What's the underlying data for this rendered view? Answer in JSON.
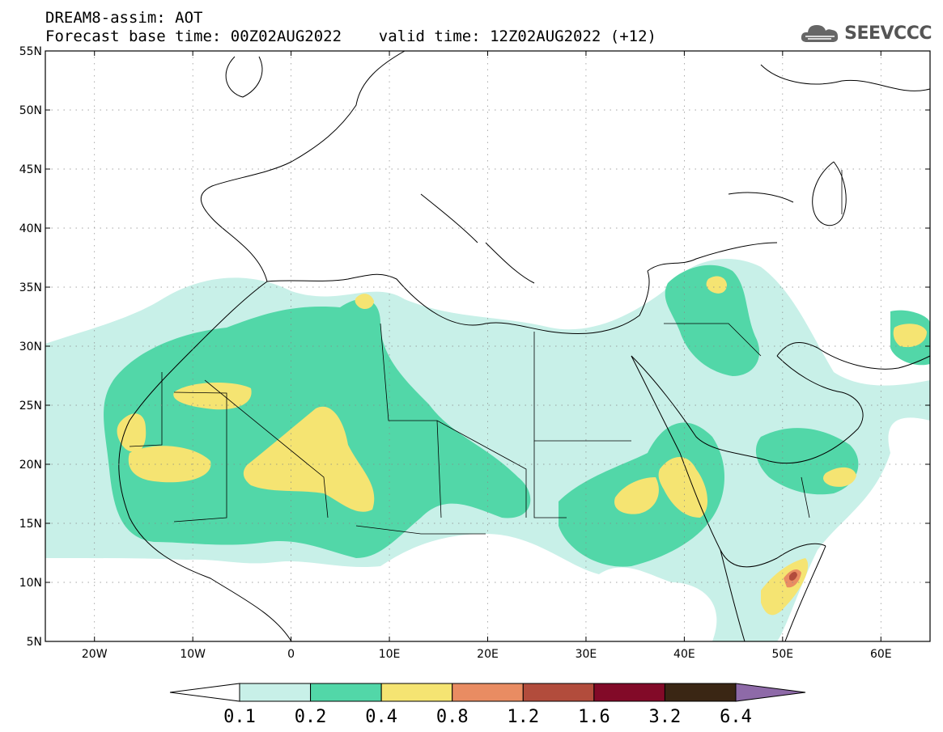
{
  "header": {
    "line1": "DREAM8-assim: AOT",
    "line2": "Forecast base time: 00Z02AUG2022    valid time: 12Z02AUG2022 (+12)"
  },
  "logo": {
    "text": "SEEVCCC",
    "icon": "cloud-logo-icon",
    "color": "#555555"
  },
  "map": {
    "lon_range": [
      -25,
      65
    ],
    "lat_range": [
      5,
      55
    ],
    "lon_ticks": [
      {
        "value": -20,
        "label": "20W"
      },
      {
        "value": -10,
        "label": "10W"
      },
      {
        "value": 0,
        "label": "0"
      },
      {
        "value": 10,
        "label": "10E"
      },
      {
        "value": 20,
        "label": "20E"
      },
      {
        "value": 30,
        "label": "30E"
      },
      {
        "value": 40,
        "label": "40E"
      },
      {
        "value": 50,
        "label": "50E"
      },
      {
        "value": 60,
        "label": "60E"
      }
    ],
    "lat_ticks": [
      {
        "value": 55,
        "label": "55N"
      },
      {
        "value": 50,
        "label": "50N"
      },
      {
        "value": 45,
        "label": "45N"
      },
      {
        "value": 40,
        "label": "40N"
      },
      {
        "value": 35,
        "label": "35N"
      },
      {
        "value": 30,
        "label": "30N"
      },
      {
        "value": 25,
        "label": "25N"
      },
      {
        "value": 20,
        "label": "20N"
      },
      {
        "value": 15,
        "label": "15N"
      },
      {
        "value": 10,
        "label": "10N"
      },
      {
        "value": 5,
        "label": "5N"
      }
    ]
  },
  "colorbar": {
    "colors": [
      "#ffffff",
      "#c8f0e8",
      "#52d7a8",
      "#f5e472",
      "#e98c62",
      "#b24c3c",
      "#820a28",
      "#3a2614",
      "#8e6aa8"
    ],
    "labels": [
      "0.1",
      "0.2",
      "0.4",
      "0.8",
      "1.2",
      "1.6",
      "3.2",
      "6.4"
    ]
  }
}
